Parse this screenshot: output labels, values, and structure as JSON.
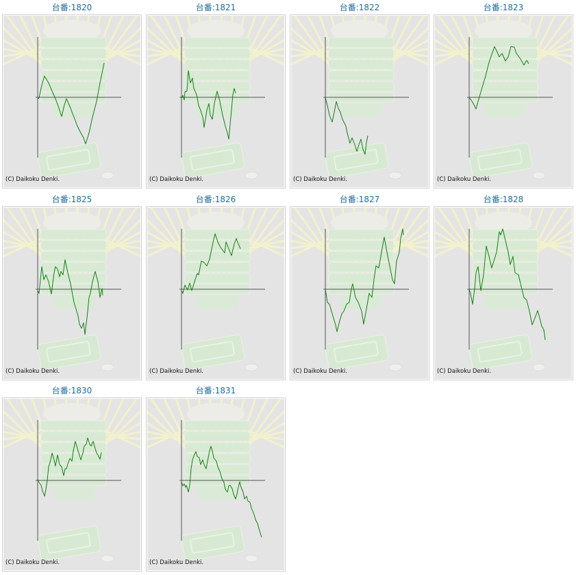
{
  "copyright": "(C) Daikoku Denki.",
  "colors": {
    "title": "#1f6a9c",
    "line": "#128012",
    "axis": "#555555",
    "background": "#e4e4e4"
  },
  "chart_data": [
    {
      "type": "line",
      "title": "台番:1820",
      "xlim": [
        0,
        122
      ],
      "ylim": [
        -88,
        88
      ],
      "points": [
        [
          0,
          -2
        ],
        [
          2,
          -1
        ],
        [
          6,
          18
        ],
        [
          10,
          31
        ],
        [
          16,
          21
        ],
        [
          21,
          9
        ],
        [
          26,
          -2
        ],
        [
          31,
          -16
        ],
        [
          35,
          -28
        ],
        [
          39,
          -11
        ],
        [
          42,
          -2
        ],
        [
          48,
          -16
        ],
        [
          53,
          -29
        ],
        [
          58,
          -42
        ],
        [
          63,
          -52
        ],
        [
          67,
          -59
        ],
        [
          70,
          -68
        ],
        [
          75,
          -52
        ],
        [
          80,
          -29
        ],
        [
          86,
          -6
        ],
        [
          91,
          21
        ],
        [
          97,
          50
        ]
      ]
    },
    {
      "type": "line",
      "title": "台番:1821",
      "xlim": [
        0,
        122
      ],
      "ylim": [
        -88,
        88
      ],
      "points": [
        [
          0,
          -2
        ],
        [
          2,
          3
        ],
        [
          4,
          -4
        ],
        [
          5,
          8
        ],
        [
          8,
          9
        ],
        [
          10,
          39
        ],
        [
          13,
          21
        ],
        [
          16,
          28
        ],
        [
          18,
          13
        ],
        [
          22,
          4
        ],
        [
          25,
          -12
        ],
        [
          28,
          -19
        ],
        [
          31,
          -29
        ],
        [
          33,
          -44
        ],
        [
          37,
          -19
        ],
        [
          40,
          -9
        ],
        [
          42,
          -26
        ],
        [
          45,
          -32
        ],
        [
          48,
          -9
        ],
        [
          52,
          9
        ],
        [
          56,
          -6
        ],
        [
          60,
          -26
        ],
        [
          64,
          -42
        ],
        [
          67,
          -52
        ],
        [
          69,
          -61
        ],
        [
          72,
          -29
        ],
        [
          75,
          4
        ],
        [
          77,
          13
        ],
        [
          79,
          6
        ]
      ]
    },
    {
      "type": "line",
      "title": "台番:1822",
      "xlim": [
        0,
        122
      ],
      "ylim": [
        -88,
        88
      ],
      "points": [
        [
          0,
          0
        ],
        [
          3,
          -12
        ],
        [
          6,
          -26
        ],
        [
          10,
          -36
        ],
        [
          13,
          -22
        ],
        [
          16,
          -6
        ],
        [
          19,
          -16
        ],
        [
          22,
          -22
        ],
        [
          25,
          -32
        ],
        [
          30,
          -42
        ],
        [
          32,
          -52
        ],
        [
          36,
          -67
        ],
        [
          39,
          -59
        ],
        [
          43,
          -69
        ],
        [
          46,
          -79
        ],
        [
          49,
          -69
        ],
        [
          52,
          -61
        ],
        [
          55,
          -76
        ],
        [
          58,
          -83
        ],
        [
          60,
          -66
        ],
        [
          62,
          -56
        ]
      ]
    },
    {
      "type": "line",
      "title": "台番:1823",
      "xlim": [
        0,
        122
      ],
      "ylim": [
        -88,
        88
      ],
      "points": [
        [
          0,
          0
        ],
        [
          5,
          -7
        ],
        [
          10,
          -17
        ],
        [
          13,
          -6
        ],
        [
          18,
          11
        ],
        [
          24,
          31
        ],
        [
          29,
          51
        ],
        [
          37,
          74
        ],
        [
          41,
          66
        ],
        [
          44,
          59
        ],
        [
          48,
          64
        ],
        [
          53,
          53
        ],
        [
          57,
          59
        ],
        [
          61,
          74
        ],
        [
          66,
          73
        ],
        [
          69,
          64
        ],
        [
          75,
          56
        ],
        [
          80,
          47
        ],
        [
          84,
          54
        ],
        [
          87,
          49
        ]
      ]
    },
    {
      "type": "line",
      "title": "台番:1825",
      "xlim": [
        0,
        122
      ],
      "ylim": [
        -88,
        88
      ],
      "points": [
        [
          0,
          -2
        ],
        [
          2,
          -6
        ],
        [
          6,
          33
        ],
        [
          9,
          14
        ],
        [
          12,
          21
        ],
        [
          16,
          11
        ],
        [
          20,
          -7
        ],
        [
          24,
          24
        ],
        [
          26,
          33
        ],
        [
          29,
          29
        ],
        [
          32,
          18
        ],
        [
          34,
          26
        ],
        [
          37,
          21
        ],
        [
          40,
          43
        ],
        [
          44,
          24
        ],
        [
          48,
          8
        ],
        [
          53,
          -19
        ],
        [
          59,
          -39
        ],
        [
          61,
          -51
        ],
        [
          64,
          -57
        ],
        [
          67,
          -49
        ],
        [
          69,
          -66
        ],
        [
          72,
          -42
        ],
        [
          75,
          -12
        ],
        [
          77,
          -6
        ],
        [
          80,
          11
        ],
        [
          84,
          26
        ],
        [
          88,
          11
        ],
        [
          91,
          -12
        ],
        [
          94,
          1
        ],
        [
          95,
          -9
        ]
      ]
    },
    {
      "type": "line",
      "title": "台番:1826",
      "xlim": [
        0,
        122
      ],
      "ylim": [
        -88,
        88
      ],
      "points": [
        [
          0,
          -2
        ],
        [
          2,
          -6
        ],
        [
          5,
          6
        ],
        [
          9,
          -1
        ],
        [
          12,
          9
        ],
        [
          15,
          -2
        ],
        [
          20,
          14
        ],
        [
          23,
          23
        ],
        [
          25,
          21
        ],
        [
          29,
          41
        ],
        [
          33,
          39
        ],
        [
          37,
          34
        ],
        [
          41,
          44
        ],
        [
          46,
          68
        ],
        [
          49,
          81
        ],
        [
          53,
          69
        ],
        [
          57,
          61
        ],
        [
          63,
          53
        ],
        [
          65,
          69
        ],
        [
          69,
          59
        ],
        [
          73,
          49
        ],
        [
          77,
          66
        ],
        [
          80,
          74
        ],
        [
          83,
          66
        ],
        [
          86,
          59
        ]
      ]
    },
    {
      "type": "line",
      "title": "台番:1827",
      "xlim": [
        0,
        122
      ],
      "ylim": [
        -88,
        88
      ],
      "points": [
        [
          0,
          0
        ],
        [
          3,
          -19
        ],
        [
          6,
          -22
        ],
        [
          11,
          -39
        ],
        [
          15,
          -52
        ],
        [
          17,
          -62
        ],
        [
          21,
          -46
        ],
        [
          24,
          -36
        ],
        [
          27,
          -32
        ],
        [
          31,
          -22
        ],
        [
          35,
          -19
        ],
        [
          38,
          1
        ],
        [
          40,
          8
        ],
        [
          44,
          -12
        ],
        [
          48,
          -19
        ],
        [
          53,
          -32
        ],
        [
          56,
          -51
        ],
        [
          60,
          -29
        ],
        [
          64,
          -6
        ],
        [
          68,
          -12
        ],
        [
          71,
          14
        ],
        [
          74,
          34
        ],
        [
          78,
          31
        ],
        [
          82,
          54
        ],
        [
          86,
          76
        ],
        [
          90,
          54
        ],
        [
          94,
          34
        ],
        [
          98,
          14
        ],
        [
          101,
          8
        ],
        [
          104,
          41
        ],
        [
          108,
          54
        ],
        [
          110,
          74
        ],
        [
          113,
          88
        ],
        [
          114,
          79
        ]
      ]
    },
    {
      "type": "line",
      "title": "台番:1828",
      "xlim": [
        0,
        122
      ],
      "ylim": [
        -88,
        88
      ],
      "points": [
        [
          0,
          0
        ],
        [
          2,
          -6
        ],
        [
          5,
          -22
        ],
        [
          8,
          1
        ],
        [
          10,
          24
        ],
        [
          13,
          33
        ],
        [
          17,
          -2
        ],
        [
          21,
          21
        ],
        [
          25,
          63
        ],
        [
          29,
          48
        ],
        [
          33,
          31
        ],
        [
          36,
          41
        ],
        [
          40,
          54
        ],
        [
          44,
          84
        ],
        [
          46,
          79
        ],
        [
          49,
          88
        ],
        [
          53,
          71
        ],
        [
          57,
          54
        ],
        [
          60,
          36
        ],
        [
          64,
          48
        ],
        [
          67,
          24
        ],
        [
          72,
          21
        ],
        [
          76,
          4
        ],
        [
          80,
          -12
        ],
        [
          84,
          -16
        ],
        [
          88,
          -32
        ],
        [
          92,
          -52
        ],
        [
          96,
          -42
        ],
        [
          100,
          -31
        ],
        [
          103,
          -42
        ],
        [
          106,
          -54
        ],
        [
          109,
          -59
        ],
        [
          111,
          -74
        ]
      ]
    },
    {
      "type": "line",
      "title": "台番:1830",
      "xlim": [
        0,
        122
      ],
      "ylim": [
        -88,
        88
      ],
      "points": [
        [
          0,
          2
        ],
        [
          2,
          -3
        ],
        [
          5,
          -7
        ],
        [
          7,
          -15
        ],
        [
          10,
          -23
        ],
        [
          12,
          -13
        ],
        [
          14,
          0
        ],
        [
          16,
          20
        ],
        [
          19,
          30
        ],
        [
          21,
          40
        ],
        [
          24,
          30
        ],
        [
          26,
          21
        ],
        [
          29,
          37
        ],
        [
          32,
          23
        ],
        [
          35,
          20
        ],
        [
          38,
          7
        ],
        [
          40,
          17
        ],
        [
          42,
          17
        ],
        [
          45,
          27
        ],
        [
          47,
          32
        ],
        [
          50,
          28
        ],
        [
          52,
          43
        ],
        [
          55,
          57
        ],
        [
          57,
          50
        ],
        [
          60,
          40
        ],
        [
          63,
          30
        ],
        [
          66,
          40
        ],
        [
          68,
          50
        ],
        [
          71,
          53
        ],
        [
          73,
          62
        ],
        [
          76,
          53
        ],
        [
          78,
          50
        ],
        [
          81,
          57
        ],
        [
          83,
          50
        ],
        [
          86,
          40
        ],
        [
          88,
          37
        ],
        [
          91,
          31
        ],
        [
          93,
          41
        ]
      ]
    },
    {
      "type": "line",
      "title": "台番:1831",
      "xlim": [
        0,
        122
      ],
      "ylim": [
        -88,
        88
      ],
      "points": [
        [
          0,
          -2
        ],
        [
          2,
          -8
        ],
        [
          4,
          -5
        ],
        [
          6,
          -10
        ],
        [
          7,
          -7
        ],
        [
          10,
          -17
        ],
        [
          12,
          -7
        ],
        [
          14,
          17
        ],
        [
          16,
          30
        ],
        [
          19,
          38
        ],
        [
          21,
          42
        ],
        [
          23,
          35
        ],
        [
          26,
          33
        ],
        [
          28,
          23
        ],
        [
          31,
          30
        ],
        [
          33,
          23
        ],
        [
          36,
          17
        ],
        [
          38,
          28
        ],
        [
          41,
          43
        ],
        [
          43,
          50
        ],
        [
          45,
          43
        ],
        [
          47,
          33
        ],
        [
          51,
          28
        ],
        [
          53,
          20
        ],
        [
          56,
          13
        ],
        [
          59,
          3
        ],
        [
          62,
          -3
        ],
        [
          64,
          -13
        ],
        [
          67,
          -17
        ],
        [
          69,
          -8
        ],
        [
          71,
          -7
        ],
        [
          74,
          -12
        ],
        [
          76,
          -20
        ],
        [
          79,
          -27
        ],
        [
          81,
          -20
        ],
        [
          83,
          -10
        ],
        [
          85,
          -2
        ],
        [
          87,
          -10
        ],
        [
          90,
          -17
        ],
        [
          92,
          -27
        ],
        [
          95,
          -23
        ],
        [
          97,
          -30
        ],
        [
          100,
          -32
        ],
        [
          102,
          -40
        ],
        [
          106,
          -50
        ],
        [
          108,
          -57
        ],
        [
          111,
          -63
        ],
        [
          113,
          -70
        ],
        [
          116,
          -80
        ],
        [
          117,
          -83
        ]
      ]
    }
  ]
}
